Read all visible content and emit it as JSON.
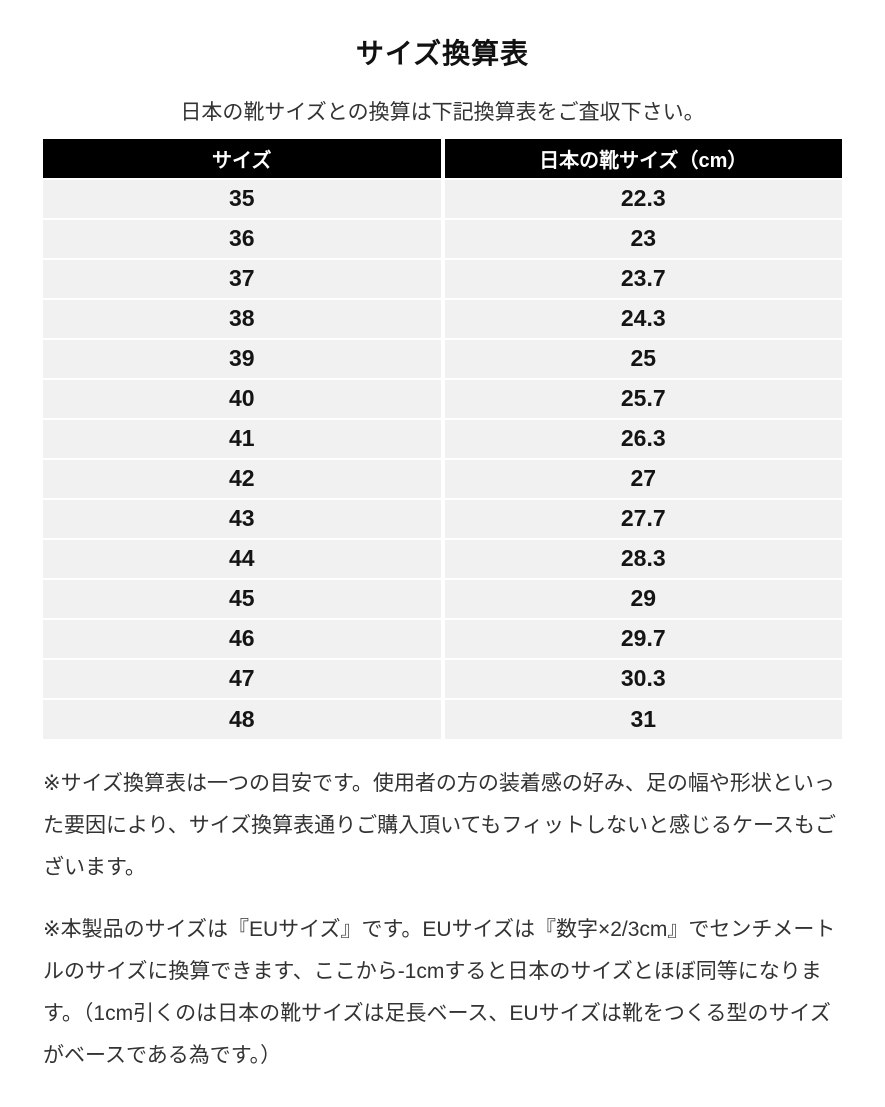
{
  "page": {
    "title": "サイズ換算表",
    "subtitle": "日本の靴サイズとの換算は下記換算表をご査収下さい。"
  },
  "table": {
    "columns": [
      {
        "key": "size",
        "label": "サイズ"
      },
      {
        "key": "cm",
        "label": "日本の靴サイズ（cm）"
      }
    ],
    "rows": [
      {
        "size": "35",
        "cm": "22.3"
      },
      {
        "size": "36",
        "cm": "23"
      },
      {
        "size": "37",
        "cm": "23.7"
      },
      {
        "size": "38",
        "cm": "24.3"
      },
      {
        "size": "39",
        "cm": "25"
      },
      {
        "size": "40",
        "cm": "25.7"
      },
      {
        "size": "41",
        "cm": "26.3"
      },
      {
        "size": "42",
        "cm": "27"
      },
      {
        "size": "43",
        "cm": "27.7"
      },
      {
        "size": "44",
        "cm": "28.3"
      },
      {
        "size": "45",
        "cm": "29"
      },
      {
        "size": "46",
        "cm": "29.7"
      },
      {
        "size": "47",
        "cm": "30.3"
      },
      {
        "size": "48",
        "cm": "31"
      }
    ]
  },
  "notes": [
    "※サイズ換算表は一つの目安です。使用者の方の装着感の好み、足の幅や形状といった要因により、サイズ換算表通りご購入頂いてもフィットしないと感じるケースもございます。",
    "※本製品のサイズは『EUサイズ』です。EUサイズは『数字×2/3cm』でセンチメートルのサイズに換算できます、ここから-1cmすると日本のサイズとほぼ同等になります。（1cm引くのは日本の靴サイズは足長ベース、EUサイズは靴をつくる型のサイズがベースである為です。）"
  ],
  "colors": {
    "header_bg": "#000000",
    "header_text": "#ffffff",
    "row_bg": "#f1f1f1",
    "cell_text": "#141414",
    "body_text": "#333333",
    "title_text": "#111111"
  }
}
